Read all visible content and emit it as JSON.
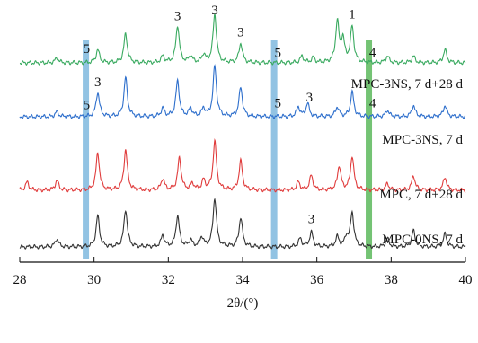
{
  "chart_data": {
    "type": "line",
    "xlabel": "2θ/(°)",
    "xlim": [
      28,
      40
    ],
    "xticks": [
      28,
      30,
      32,
      34,
      36,
      38,
      40
    ],
    "grid": false,
    "series": [
      {
        "name": "MPC-0NS, 7 d",
        "color": "#333333",
        "peaks": [
          [
            29.0,
            0.5
          ],
          [
            30.1,
            1.9
          ],
          [
            30.85,
            2.3
          ],
          [
            31.85,
            0.7
          ],
          [
            32.25,
            1.9
          ],
          [
            32.6,
            0.4
          ],
          [
            32.9,
            0.6
          ],
          [
            33.25,
            3.0
          ],
          [
            33.95,
            1.8
          ],
          [
            35.55,
            0.5
          ],
          [
            35.85,
            0.9
          ],
          [
            36.55,
            0.6
          ],
          [
            36.8,
            0.6
          ],
          [
            36.95,
            2.1
          ],
          [
            37.9,
            0.5
          ],
          [
            38.6,
            1.0
          ],
          [
            39.45,
            0.8
          ]
        ]
      },
      {
        "name": "MPC, 7 d+28 d",
        "color": "#e03c3c",
        "peaks": [
          [
            28.2,
            0.5
          ],
          [
            29.0,
            0.6
          ],
          [
            30.1,
            2.3
          ],
          [
            30.85,
            2.5
          ],
          [
            31.85,
            0.7
          ],
          [
            32.3,
            2.0
          ],
          [
            32.65,
            0.4
          ],
          [
            32.95,
            0.6
          ],
          [
            33.25,
            3.0
          ],
          [
            33.95,
            1.8
          ],
          [
            35.5,
            0.5
          ],
          [
            35.85,
            0.9
          ],
          [
            36.6,
            1.5
          ],
          [
            36.95,
            2.1
          ],
          [
            37.9,
            0.4
          ],
          [
            38.6,
            0.9
          ],
          [
            39.45,
            0.8
          ]
        ]
      },
      {
        "name": "MPC-3NS, 7 d",
        "color": "#2e6fcc",
        "peaks": [
          [
            29.0,
            0.3
          ],
          [
            30.1,
            1.5
          ],
          [
            30.85,
            2.4
          ],
          [
            31.85,
            0.5
          ],
          [
            32.25,
            2.2
          ],
          [
            32.6,
            0.5
          ],
          [
            32.95,
            0.5
          ],
          [
            33.25,
            3.1
          ],
          [
            33.95,
            1.8
          ],
          [
            35.5,
            0.6
          ],
          [
            35.75,
            0.8
          ],
          [
            36.55,
            0.6
          ],
          [
            36.95,
            1.5
          ],
          [
            37.9,
            0.4
          ],
          [
            38.6,
            0.7
          ],
          [
            39.45,
            0.7
          ]
        ]
      },
      {
        "name": "MPC-3NS, 7 d+28 d",
        "color": "#3aaa60",
        "peaks": [
          [
            29.0,
            0.3
          ],
          [
            30.1,
            0.8
          ],
          [
            30.85,
            1.8
          ],
          [
            31.85,
            0.4
          ],
          [
            32.25,
            2.3
          ],
          [
            32.6,
            0.4
          ],
          [
            32.95,
            0.5
          ],
          [
            33.25,
            3.0
          ],
          [
            33.95,
            1.2
          ],
          [
            35.6,
            0.4
          ],
          [
            35.9,
            0.3
          ],
          [
            36.55,
            2.5
          ],
          [
            36.7,
            1.4
          ],
          [
            36.95,
            2.2
          ],
          [
            37.9,
            0.4
          ],
          [
            38.6,
            0.4
          ],
          [
            39.45,
            0.8
          ]
        ]
      }
    ],
    "highlight_bands": [
      {
        "x": 29.78,
        "color": "#7fb8de"
      },
      {
        "x": 34.85,
        "color": "#7fb8de"
      },
      {
        "x": 37.4,
        "color": "#5cb85c"
      }
    ],
    "annotations": [
      {
        "text": "5",
        "x": 29.8,
        "series": 3
      },
      {
        "text": "3",
        "x": 32.25,
        "series": 3
      },
      {
        "text": "3",
        "x": 33.25,
        "series": 3
      },
      {
        "text": "3",
        "x": 33.95,
        "series": 3
      },
      {
        "text": "5",
        "x": 34.95,
        "series": 3
      },
      {
        "text": "1",
        "x": 36.95,
        "series": 3
      },
      {
        "text": "4",
        "x": 37.5,
        "series": 3
      },
      {
        "text": "5",
        "x": 29.8,
        "series": 2
      },
      {
        "text": "3",
        "x": 30.1,
        "series": 2
      },
      {
        "text": "5",
        "x": 34.95,
        "series": 2
      },
      {
        "text": "3",
        "x": 35.8,
        "series": 2
      },
      {
        "text": "4",
        "x": 37.5,
        "series": 2
      },
      {
        "text": "3",
        "x": 35.85,
        "series": 0
      }
    ]
  }
}
